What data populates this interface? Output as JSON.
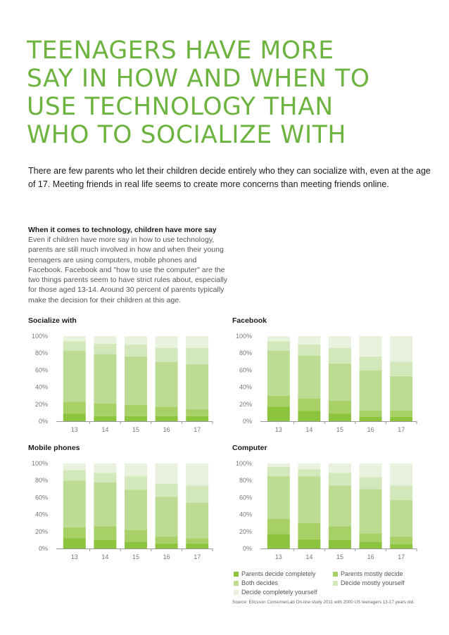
{
  "title_lines": [
    "TEENAGERS HAVE MORE",
    "SAY IN HOW AND WHEN TO",
    "USE TECHNOLOGY THAN",
    "WHO TO SOCIALIZE WITH"
  ],
  "intro": "There are few parents who let their children decide entirely who they can socialize with, even at the age of 17. Meeting friends in real life seems to create more concerns than meeting friends online.",
  "section": {
    "heading": "When it comes to technology, children have more say",
    "body": "Even if children have more say in how to use technology, parents are still much involved in how and when their young teenagers are using computers, mobile phones and Facebook. Facebook and \"how to use the computer\" are the two things parents seem to have strict rules about, especially for those aged 13-14. Around 30 percent of parents typically make the decision for their children at this age."
  },
  "colors": {
    "title": "#6db33f",
    "parents_decide_completely": "#8cc43e",
    "parents_mostly_decide": "#a7d167",
    "both_decides": "#bddc93",
    "decide_mostly_yourself": "#d3e8ba",
    "decide_completely_yourself": "#e8f2dc"
  },
  "legend": [
    {
      "label": "Parents decide completely",
      "color": "#8cc43e"
    },
    {
      "label": "Parents mostly decide",
      "color": "#a7d167"
    },
    {
      "label": "Both decides",
      "color": "#bddc93"
    },
    {
      "label": "Decide mostly yourself",
      "color": "#d3e8ba"
    },
    {
      "label": "Decide completely yourself",
      "color": "#e8f2dc"
    }
  ],
  "source": "Source: Ericsson ConsumerLab On-line study 2011 with 2000 US teenagers 13-17 years old.",
  "chart_data": [
    {
      "type": "bar",
      "stacked": true,
      "title": "Socialize with",
      "categories": [
        "13",
        "14",
        "15",
        "16",
        "17"
      ],
      "yticks": [
        "0%",
        "20%",
        "40%",
        "60%",
        "80%",
        "100%"
      ],
      "ylim": [
        0,
        100
      ],
      "series": [
        {
          "name": "Parents decide completely",
          "values": [
            9,
            6,
            6,
            6,
            6
          ]
        },
        {
          "name": "Parents mostly decide",
          "values": [
            14,
            15,
            13,
            11,
            8
          ]
        },
        {
          "name": "Both decides",
          "values": [
            60,
            58,
            57,
            53,
            53
          ]
        },
        {
          "name": "Decide mostly yourself",
          "values": [
            11,
            12,
            14,
            16,
            19
          ]
        },
        {
          "name": "Decide completely yourself",
          "values": [
            6,
            9,
            10,
            14,
            14
          ]
        }
      ]
    },
    {
      "type": "bar",
      "stacked": true,
      "title": "Facebook",
      "categories": [
        "13",
        "14",
        "15",
        "16",
        "17"
      ],
      "yticks": [
        "0%",
        "20%",
        "40%",
        "60%",
        "80%",
        "100%"
      ],
      "ylim": [
        0,
        100
      ],
      "series": [
        {
          "name": "Parents decide completely",
          "values": [
            17,
            12,
            9,
            5,
            5
          ]
        },
        {
          "name": "Parents mostly decide",
          "values": [
            13,
            15,
            15,
            8,
            8
          ]
        },
        {
          "name": "Both decides",
          "values": [
            53,
            50,
            44,
            47,
            40
          ]
        },
        {
          "name": "Decide mostly yourself",
          "values": [
            11,
            13,
            18,
            16,
            17
          ]
        },
        {
          "name": "Decide completely yourself",
          "values": [
            6,
            10,
            14,
            24,
            30
          ]
        }
      ]
    },
    {
      "type": "bar",
      "stacked": true,
      "title": "Mobile phones",
      "categories": [
        "13",
        "14",
        "15",
        "16",
        "17"
      ],
      "yticks": [
        "0%",
        "20%",
        "40%",
        "60%",
        "80%",
        "100%"
      ],
      "ylim": [
        0,
        100
      ],
      "series": [
        {
          "name": "Parents decide completely",
          "values": [
            12,
            10,
            8,
            6,
            6
          ]
        },
        {
          "name": "Parents mostly decide",
          "values": [
            13,
            16,
            14,
            8,
            6
          ]
        },
        {
          "name": "Both decides",
          "values": [
            55,
            52,
            47,
            47,
            42
          ]
        },
        {
          "name": "Decide mostly yourself",
          "values": [
            12,
            11,
            16,
            15,
            20
          ]
        },
        {
          "name": "Decide completely yourself",
          "values": [
            8,
            11,
            15,
            24,
            26
          ]
        }
      ]
    },
    {
      "type": "bar",
      "stacked": true,
      "title": "Computer",
      "categories": [
        "13",
        "14",
        "15",
        "16",
        "17"
      ],
      "yticks": [
        "0%",
        "20%",
        "40%",
        "60%",
        "80%",
        "100%"
      ],
      "ylim": [
        0,
        100
      ],
      "series": [
        {
          "name": "Parents decide completely",
          "values": [
            17,
            11,
            10,
            8,
            5
          ]
        },
        {
          "name": "Parents mostly decide",
          "values": [
            18,
            19,
            16,
            10,
            9
          ]
        },
        {
          "name": "Both decides",
          "values": [
            50,
            55,
            48,
            52,
            43
          ]
        },
        {
          "name": "Decide mostly yourself",
          "values": [
            11,
            8,
            15,
            14,
            17
          ]
        },
        {
          "name": "Decide completely yourself",
          "values": [
            4,
            7,
            11,
            16,
            26
          ]
        }
      ]
    }
  ]
}
